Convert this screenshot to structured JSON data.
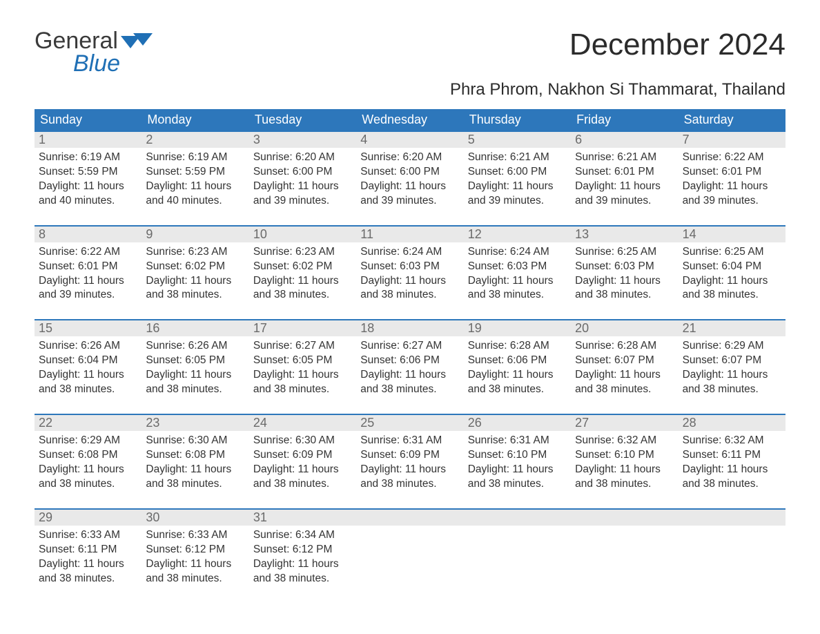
{
  "colors": {
    "header_bg": "#2d77bb",
    "header_text": "#ffffff",
    "daynum_bg": "#e9e9e9",
    "daynum_text": "#6a6a6a",
    "week_border": "#2d77bb",
    "body_text": "#333333",
    "logo_gray": "#3a3a3a",
    "logo_blue": "#1f6fb5",
    "title_color": "#2b2b2b"
  },
  "logo": {
    "general": "General",
    "blue": "Blue"
  },
  "title": "December 2024",
  "location": "Phra Phrom, Nakhon Si Thammarat, Thailand",
  "daynames": [
    "Sunday",
    "Monday",
    "Tuesday",
    "Wednesday",
    "Thursday",
    "Friday",
    "Saturday"
  ],
  "labels": {
    "sunrise": "Sunrise",
    "sunset": "Sunset",
    "daylight": "Daylight"
  },
  "days": [
    {
      "n": 1,
      "sunrise": "6:19 AM",
      "sunset": "5:59 PM",
      "daylight": "11 hours and 40 minutes."
    },
    {
      "n": 2,
      "sunrise": "6:19 AM",
      "sunset": "5:59 PM",
      "daylight": "11 hours and 40 minutes."
    },
    {
      "n": 3,
      "sunrise": "6:20 AM",
      "sunset": "6:00 PM",
      "daylight": "11 hours and 39 minutes."
    },
    {
      "n": 4,
      "sunrise": "6:20 AM",
      "sunset": "6:00 PM",
      "daylight": "11 hours and 39 minutes."
    },
    {
      "n": 5,
      "sunrise": "6:21 AM",
      "sunset": "6:00 PM",
      "daylight": "11 hours and 39 minutes."
    },
    {
      "n": 6,
      "sunrise": "6:21 AM",
      "sunset": "6:01 PM",
      "daylight": "11 hours and 39 minutes."
    },
    {
      "n": 7,
      "sunrise": "6:22 AM",
      "sunset": "6:01 PM",
      "daylight": "11 hours and 39 minutes."
    },
    {
      "n": 8,
      "sunrise": "6:22 AM",
      "sunset": "6:01 PM",
      "daylight": "11 hours and 39 minutes."
    },
    {
      "n": 9,
      "sunrise": "6:23 AM",
      "sunset": "6:02 PM",
      "daylight": "11 hours and 38 minutes."
    },
    {
      "n": 10,
      "sunrise": "6:23 AM",
      "sunset": "6:02 PM",
      "daylight": "11 hours and 38 minutes."
    },
    {
      "n": 11,
      "sunrise": "6:24 AM",
      "sunset": "6:03 PM",
      "daylight": "11 hours and 38 minutes."
    },
    {
      "n": 12,
      "sunrise": "6:24 AM",
      "sunset": "6:03 PM",
      "daylight": "11 hours and 38 minutes."
    },
    {
      "n": 13,
      "sunrise": "6:25 AM",
      "sunset": "6:03 PM",
      "daylight": "11 hours and 38 minutes."
    },
    {
      "n": 14,
      "sunrise": "6:25 AM",
      "sunset": "6:04 PM",
      "daylight": "11 hours and 38 minutes."
    },
    {
      "n": 15,
      "sunrise": "6:26 AM",
      "sunset": "6:04 PM",
      "daylight": "11 hours and 38 minutes."
    },
    {
      "n": 16,
      "sunrise": "6:26 AM",
      "sunset": "6:05 PM",
      "daylight": "11 hours and 38 minutes."
    },
    {
      "n": 17,
      "sunrise": "6:27 AM",
      "sunset": "6:05 PM",
      "daylight": "11 hours and 38 minutes."
    },
    {
      "n": 18,
      "sunrise": "6:27 AM",
      "sunset": "6:06 PM",
      "daylight": "11 hours and 38 minutes."
    },
    {
      "n": 19,
      "sunrise": "6:28 AM",
      "sunset": "6:06 PM",
      "daylight": "11 hours and 38 minutes."
    },
    {
      "n": 20,
      "sunrise": "6:28 AM",
      "sunset": "6:07 PM",
      "daylight": "11 hours and 38 minutes."
    },
    {
      "n": 21,
      "sunrise": "6:29 AM",
      "sunset": "6:07 PM",
      "daylight": "11 hours and 38 minutes."
    },
    {
      "n": 22,
      "sunrise": "6:29 AM",
      "sunset": "6:08 PM",
      "daylight": "11 hours and 38 minutes."
    },
    {
      "n": 23,
      "sunrise": "6:30 AM",
      "sunset": "6:08 PM",
      "daylight": "11 hours and 38 minutes."
    },
    {
      "n": 24,
      "sunrise": "6:30 AM",
      "sunset": "6:09 PM",
      "daylight": "11 hours and 38 minutes."
    },
    {
      "n": 25,
      "sunrise": "6:31 AM",
      "sunset": "6:09 PM",
      "daylight": "11 hours and 38 minutes."
    },
    {
      "n": 26,
      "sunrise": "6:31 AM",
      "sunset": "6:10 PM",
      "daylight": "11 hours and 38 minutes."
    },
    {
      "n": 27,
      "sunrise": "6:32 AM",
      "sunset": "6:10 PM",
      "daylight": "11 hours and 38 minutes."
    },
    {
      "n": 28,
      "sunrise": "6:32 AM",
      "sunset": "6:11 PM",
      "daylight": "11 hours and 38 minutes."
    },
    {
      "n": 29,
      "sunrise": "6:33 AM",
      "sunset": "6:11 PM",
      "daylight": "11 hours and 38 minutes."
    },
    {
      "n": 30,
      "sunrise": "6:33 AM",
      "sunset": "6:12 PM",
      "daylight": "11 hours and 38 minutes."
    },
    {
      "n": 31,
      "sunrise": "6:34 AM",
      "sunset": "6:12 PM",
      "daylight": "11 hours and 38 minutes."
    }
  ],
  "layout": {
    "columns": 7,
    "rows": 5,
    "start_column": 0,
    "fontsize_title": 44,
    "fontsize_location": 24,
    "fontsize_dayname": 18,
    "fontsize_daynum": 18,
    "fontsize_details": 15.5
  }
}
